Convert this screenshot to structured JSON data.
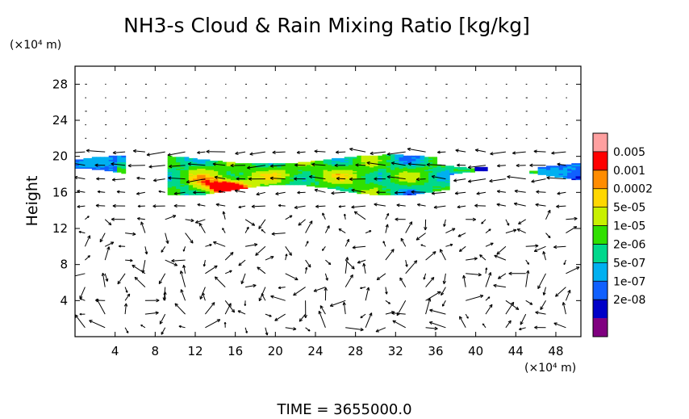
{
  "chart_data": {
    "type": "heatmap",
    "title": "NH3-s Cloud & Rain Mixing Ratio [kg/kg]",
    "xlabel": "",
    "ylabel": "Height",
    "x_unit": "(×10⁴ m)",
    "y_unit": "(×10⁴ m)",
    "xlim": [
      0,
      50.5
    ],
    "ylim": [
      0,
      30
    ],
    "xticks": [
      4,
      8,
      12,
      16,
      20,
      24,
      28,
      32,
      36,
      40,
      44,
      48
    ],
    "yticks": [
      4,
      8,
      12,
      16,
      20,
      24,
      28
    ],
    "colorbar": {
      "labels": [
        "0.005",
        "0.001",
        "0.0002",
        "5e-05",
        "1e-05",
        "2e-06",
        "5e-07",
        "1e-07",
        "2e-08"
      ],
      "colors": [
        "#ffa0a0",
        "#ff0000",
        "#ff8c00",
        "#ffd700",
        "#c8f000",
        "#30e000",
        "#00d88c",
        "#00b0f0",
        "#1060ff",
        "#0000c8",
        "#800080"
      ]
    },
    "cloud_layer": {
      "x_range": [
        0,
        50.5
      ],
      "height_range": [
        15.8,
        20.0
      ],
      "max_region": {
        "x": 15,
        "height": 16.5,
        "class": "0.001"
      }
    },
    "footer": "TIME = 3655000.0"
  }
}
